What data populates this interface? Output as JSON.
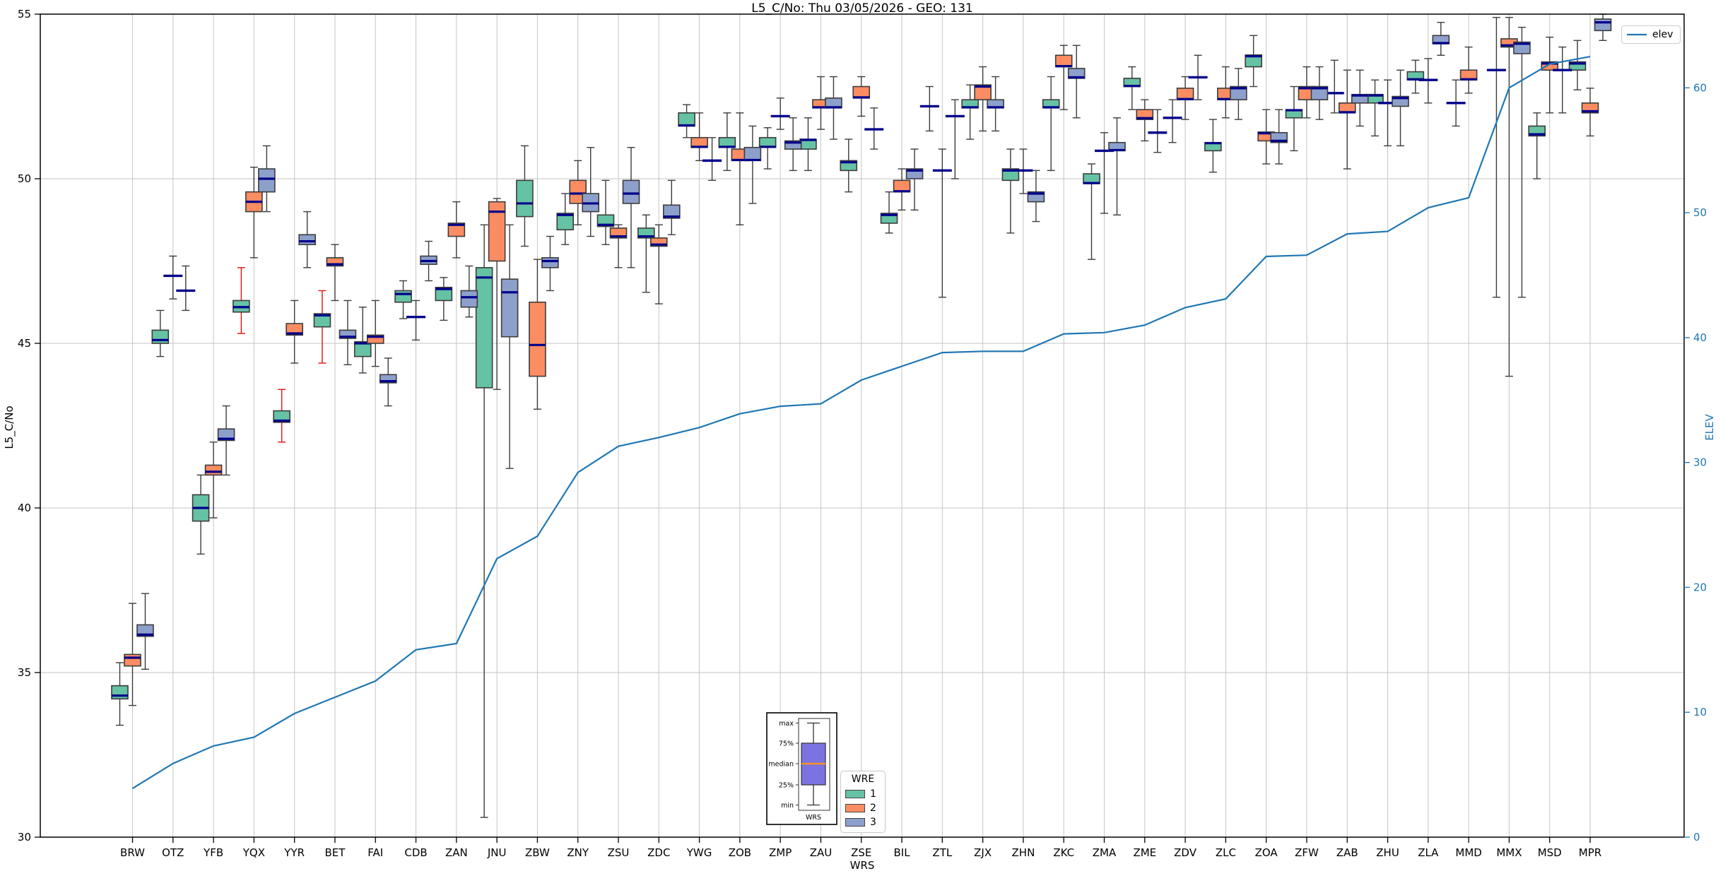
{
  "title": "L5_C/No: Thu 03/05/2026 - GEO: 131",
  "axes": {
    "left_label": "L5_C/No",
    "right_label": "ELEV",
    "x_label": "WRS",
    "left_ticks": [
      30,
      35,
      40,
      45,
      50,
      55
    ],
    "right_ticks": [
      0,
      10,
      20,
      30,
      40,
      50,
      60
    ],
    "left_range": [
      30,
      55
    ],
    "right_range": [
      0,
      65.9
    ],
    "grid_values": [
      35,
      40,
      45,
      50
    ]
  },
  "legend": {
    "title": "WRE",
    "entries": [
      {
        "label": "1",
        "color": "#66c2a5"
      },
      {
        "label": "2",
        "color": "#fc8d62"
      },
      {
        "label": "3",
        "color": "#8da0cb"
      }
    ]
  },
  "line_legend": {
    "label": "elev",
    "color": "#1f77b4"
  },
  "inset": {
    "labels": [
      "max",
      "75%",
      "median",
      "25%",
      "min"
    ],
    "xlabel": "WRS",
    "box_color": "#7b74e0",
    "median_color": "#ff8f1f"
  },
  "colors": {
    "median": "#00008b",
    "box_edge": "#3c3c3c",
    "red_whisker": "#e01010",
    "grid": "#c6c6c6",
    "elev_line": "#1f77b4",
    "right_axis_text": "#1f77b4"
  },
  "chart_data": {
    "type": "boxplot+line",
    "title": "L5_C/No: Thu 03/05/2026 - GEO: 131",
    "xlabel": "WRS",
    "ylabel_left": "L5_C/No",
    "ylabel_right": "ELEV",
    "ylim_left": [
      30,
      55
    ],
    "ylim_right": [
      0,
      65.9
    ],
    "grid": true,
    "legend_position": "lower center",
    "categories": [
      "BRW",
      "OTZ",
      "YFB",
      "YQX",
      "YYR",
      "BET",
      "FAI",
      "CDB",
      "ZAN",
      "JNU",
      "ZBW",
      "ZNY",
      "ZSU",
      "ZDC",
      "YWG",
      "ZOB",
      "ZMP",
      "ZAU",
      "ZSE",
      "BIL",
      "ZTL",
      "ZJX",
      "ZHN",
      "ZKC",
      "ZMA",
      "ZME",
      "ZDV",
      "ZLC",
      "ZOA",
      "ZFW",
      "ZAB",
      "ZHU",
      "ZLA",
      "MMD",
      "MMX",
      "MSD",
      "MPR"
    ],
    "box_format": [
      "whisker_low",
      "q1",
      "median",
      "q3",
      "whisker_high"
    ],
    "series": [
      {
        "name": "1",
        "color": "#66c2a5",
        "red_whisker_stations": [
          "YQX",
          "YYR",
          "BET"
        ],
        "boxes": [
          [
            33.4,
            34.2,
            34.3,
            34.6,
            35.3
          ],
          [
            44.6,
            45.0,
            45.1,
            45.4,
            46.0
          ],
          [
            38.6,
            39.6,
            40.0,
            40.4,
            41.0
          ],
          [
            45.3,
            45.95,
            46.1,
            46.3,
            47.3
          ],
          [
            42.0,
            42.6,
            42.65,
            42.95,
            43.6
          ],
          [
            44.4,
            45.5,
            45.85,
            45.9,
            46.6
          ],
          [
            44.1,
            44.6,
            45.0,
            45.05,
            46.1
          ],
          [
            45.75,
            46.25,
            46.5,
            46.6,
            46.9
          ],
          [
            45.7,
            46.3,
            46.65,
            46.7,
            47.0
          ],
          [
            30.6,
            43.65,
            47.0,
            47.3,
            48.6
          ],
          [
            47.95,
            48.85,
            49.25,
            49.95,
            51.0
          ],
          [
            48.0,
            48.45,
            48.9,
            48.95,
            49.55
          ],
          [
            48.0,
            48.55,
            48.6,
            48.9,
            49.95
          ],
          [
            46.55,
            48.2,
            48.25,
            48.5,
            48.9
          ],
          [
            51.25,
            51.6,
            51.62,
            52.0,
            52.25
          ],
          [
            50.25,
            50.95,
            50.97,
            51.25,
            52.0
          ],
          [
            50.3,
            50.95,
            50.97,
            51.25,
            51.55
          ],
          [
            50.25,
            50.9,
            51.18,
            51.2,
            51.85
          ],
          [
            49.6,
            50.25,
            50.5,
            50.55,
            51.2
          ],
          [
            48.35,
            48.65,
            48.9,
            48.95,
            49.6
          ],
          [
            51.45,
            52.2,
            52.2,
            52.2,
            52.8
          ],
          [
            51.2,
            52.15,
            52.17,
            52.4,
            52.85
          ],
          [
            48.35,
            49.95,
            50.25,
            50.3,
            50.9
          ],
          [
            50.25,
            52.15,
            52.17,
            52.4,
            53.1
          ],
          [
            47.55,
            49.85,
            49.87,
            50.15,
            50.45
          ],
          [
            52.1,
            52.8,
            52.82,
            53.05,
            53.4
          ],
          [
            51.1,
            51.85,
            51.85,
            51.85,
            52.4
          ],
          [
            50.2,
            50.85,
            51.08,
            51.1,
            51.8
          ],
          [
            52.8,
            53.4,
            53.72,
            53.76,
            54.35
          ],
          [
            50.85,
            51.85,
            52.08,
            52.1,
            52.8
          ],
          [
            52.0,
            52.6,
            52.6,
            52.6,
            53.6
          ],
          [
            51.3,
            52.3,
            52.53,
            52.56,
            53.0
          ],
          [
            52.6,
            53.0,
            53.02,
            53.25,
            53.6
          ],
          [
            51.6,
            52.3,
            52.3,
            52.3,
            53.0
          ],
          [
            46.4,
            53.3,
            53.3,
            53.3,
            54.9
          ],
          [
            50.0,
            51.3,
            51.35,
            51.6,
            52.0
          ],
          [
            52.7,
            53.3,
            53.5,
            53.55,
            54.2
          ]
        ]
      },
      {
        "name": "2",
        "color": "#fc8d62",
        "red_whisker_stations": [],
        "boxes": [
          [
            34.0,
            35.2,
            35.45,
            35.55,
            37.1
          ],
          [
            46.35,
            47.05,
            47.05,
            47.05,
            47.65
          ],
          [
            39.7,
            41.0,
            41.1,
            41.3,
            42.0
          ],
          [
            47.6,
            49.0,
            49.3,
            49.6,
            50.35
          ],
          [
            44.4,
            45.25,
            45.3,
            45.6,
            46.3
          ],
          [
            46.3,
            47.35,
            47.4,
            47.6,
            48.0
          ],
          [
            44.3,
            45.0,
            45.2,
            45.25,
            46.3
          ],
          [
            45.1,
            45.8,
            45.8,
            45.8,
            46.3
          ],
          [
            47.6,
            48.25,
            48.6,
            48.65,
            49.3
          ],
          [
            43.6,
            47.5,
            49.0,
            49.3,
            49.4
          ],
          [
            43.0,
            44.0,
            44.95,
            46.25,
            47.55
          ],
          [
            48.6,
            49.25,
            49.55,
            49.95,
            50.55
          ],
          [
            47.3,
            48.2,
            48.25,
            48.5,
            48.6
          ],
          [
            46.2,
            47.95,
            48.0,
            48.2,
            48.6
          ],
          [
            50.55,
            50.95,
            50.97,
            51.25,
            52.0
          ],
          [
            48.6,
            50.55,
            50.57,
            50.9,
            52.0
          ],
          [
            51.5,
            51.9,
            51.9,
            51.9,
            52.45
          ],
          [
            51.5,
            52.15,
            52.17,
            52.4,
            53.1
          ],
          [
            51.9,
            52.45,
            52.47,
            52.8,
            53.1
          ],
          [
            49.05,
            49.6,
            49.62,
            49.95,
            50.3
          ],
          [
            46.4,
            50.25,
            50.25,
            50.25,
            50.9
          ],
          [
            51.45,
            52.4,
            52.8,
            52.85,
            53.4
          ],
          [
            49.55,
            50.25,
            50.25,
            50.25,
            50.9
          ],
          [
            52.1,
            53.4,
            53.42,
            53.75,
            54.05
          ],
          [
            48.95,
            50.85,
            50.85,
            50.85,
            51.4
          ],
          [
            51.15,
            51.8,
            51.84,
            52.1,
            52.4
          ],
          [
            51.8,
            52.4,
            52.42,
            52.75,
            53.1
          ],
          [
            51.85,
            52.4,
            52.42,
            52.75,
            53.4
          ],
          [
            50.45,
            51.15,
            51.38,
            51.42,
            52.1
          ],
          [
            51.85,
            52.4,
            52.75,
            52.8,
            53.4
          ],
          [
            50.3,
            52.0,
            52.02,
            52.3,
            53.3
          ],
          [
            51.0,
            52.3,
            52.3,
            52.3,
            53.0
          ],
          [
            52.3,
            53.0,
            53.0,
            53.0,
            53.65
          ],
          [
            52.6,
            53.0,
            53.02,
            53.3,
            54.0
          ],
          [
            44.0,
            54.0,
            54.05,
            54.25,
            54.9
          ],
          [
            52.0,
            53.3,
            53.5,
            53.55,
            54.3
          ],
          [
            51.3,
            52.0,
            52.05,
            52.3,
            52.75
          ]
        ]
      },
      {
        "name": "3",
        "color": "#8da0cb",
        "red_whisker_stations": [],
        "boxes": [
          [
            35.1,
            36.1,
            36.15,
            36.45,
            37.4
          ],
          [
            46.0,
            46.6,
            46.6,
            46.6,
            47.35
          ],
          [
            41.0,
            42.05,
            42.1,
            42.4,
            43.1
          ],
          [
            49.0,
            49.6,
            50.0,
            50.3,
            51.0
          ],
          [
            47.3,
            48.0,
            48.1,
            48.3,
            49.0
          ],
          [
            44.35,
            45.15,
            45.2,
            45.4,
            46.3
          ],
          [
            43.1,
            43.8,
            43.85,
            44.05,
            44.55
          ],
          [
            46.9,
            47.4,
            47.5,
            47.65,
            48.1
          ],
          [
            45.8,
            46.1,
            46.4,
            46.6,
            47.35
          ],
          [
            41.2,
            45.2,
            46.55,
            46.95,
            48.6
          ],
          [
            46.6,
            47.3,
            47.5,
            47.6,
            48.25
          ],
          [
            48.25,
            49.0,
            49.25,
            49.55,
            50.95
          ],
          [
            47.3,
            49.25,
            49.55,
            49.95,
            50.95
          ],
          [
            48.3,
            48.8,
            48.85,
            49.2,
            49.95
          ],
          [
            49.95,
            50.55,
            50.55,
            50.55,
            51.25
          ],
          [
            49.25,
            50.55,
            50.57,
            50.95,
            51.6
          ],
          [
            50.25,
            50.9,
            51.1,
            51.15,
            51.85
          ],
          [
            51.2,
            52.15,
            52.17,
            52.45,
            53.1
          ],
          [
            50.9,
            51.5,
            51.5,
            51.5,
            52.15
          ],
          [
            49.05,
            50.0,
            50.25,
            50.3,
            50.9
          ],
          [
            50.0,
            51.9,
            51.9,
            51.9,
            52.4
          ],
          [
            51.45,
            52.15,
            52.17,
            52.4,
            53.1
          ],
          [
            48.7,
            49.3,
            49.55,
            49.6,
            50.25
          ],
          [
            51.85,
            53.05,
            53.08,
            53.35,
            54.05
          ],
          [
            48.9,
            50.85,
            50.87,
            51.1,
            51.85
          ],
          [
            50.8,
            51.4,
            51.4,
            51.4,
            52.1
          ],
          [
            52.4,
            53.08,
            53.08,
            53.08,
            53.75
          ],
          [
            51.8,
            52.4,
            52.75,
            52.8,
            53.35
          ],
          [
            50.45,
            51.1,
            51.15,
            51.4,
            52.1
          ],
          [
            51.8,
            52.4,
            52.75,
            52.8,
            53.4
          ],
          [
            51.6,
            52.3,
            52.53,
            52.56,
            53.3
          ],
          [
            51.0,
            52.2,
            52.45,
            52.5,
            53.3
          ],
          [
            53.75,
            54.1,
            54.12,
            54.35,
            54.75
          ],
          null,
          [
            46.4,
            53.8,
            54.1,
            54.15,
            54.6
          ],
          [
            52.0,
            53.3,
            53.3,
            53.3,
            54.0
          ],
          [
            54.2,
            54.5,
            54.75,
            54.85,
            55.0
          ]
        ]
      }
    ],
    "line": {
      "name": "elev",
      "axis": "right",
      "color": "#1f77b4",
      "values": [
        3.9,
        5.9,
        7.3,
        8.0,
        9.9,
        11.2,
        12.5,
        15.0,
        15.5,
        22.3,
        24.1,
        29.2,
        31.3,
        32.0,
        32.8,
        33.9,
        34.5,
        34.7,
        36.6,
        37.7,
        38.8,
        38.9,
        38.9,
        40.3,
        40.4,
        41.0,
        42.4,
        43.1,
        46.5,
        46.6,
        48.3,
        48.5,
        50.4,
        51.2,
        60.0,
        61.9,
        62.5
      ]
    }
  }
}
